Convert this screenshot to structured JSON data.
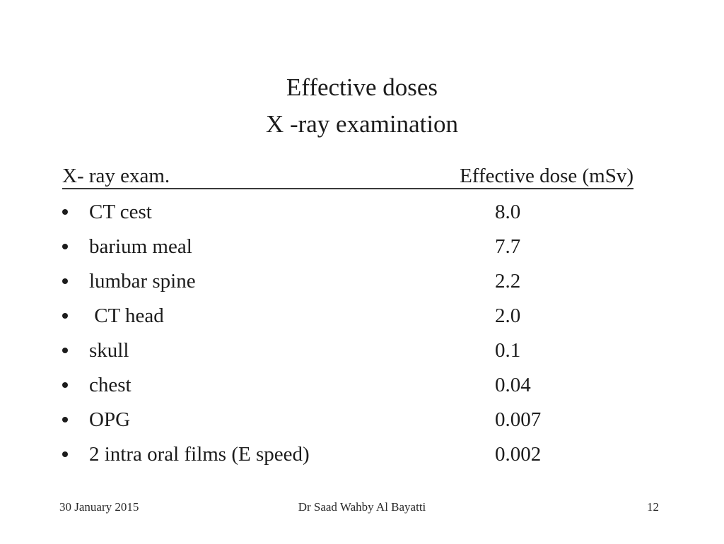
{
  "slide": {
    "title": {
      "line1": "Effective doses",
      "line2": "X -ray examination"
    },
    "table": {
      "columns": [
        "X- ray exam.",
        "Effective dose (mSv)"
      ],
      "rows": [
        {
          "exam": "CT cest",
          "dose": "8.0"
        },
        {
          "exam": "barium meal",
          "dose": "7.7"
        },
        {
          "exam": "lumbar spine",
          "dose": "2.2"
        },
        {
          "exam": " CT head",
          "dose": "2.0"
        },
        {
          "exam": "skull",
          "dose": "0.1"
        },
        {
          "exam": "chest",
          "dose": "0.04"
        },
        {
          "exam": "OPG",
          "dose": "0.007"
        },
        {
          "exam": "2 intra oral films (E speed)",
          "dose": "0.002"
        }
      ]
    },
    "footer": {
      "date": "30 January 2015",
      "author": "Dr Saad Wahby Al Bayatti",
      "page_number": "12"
    }
  }
}
